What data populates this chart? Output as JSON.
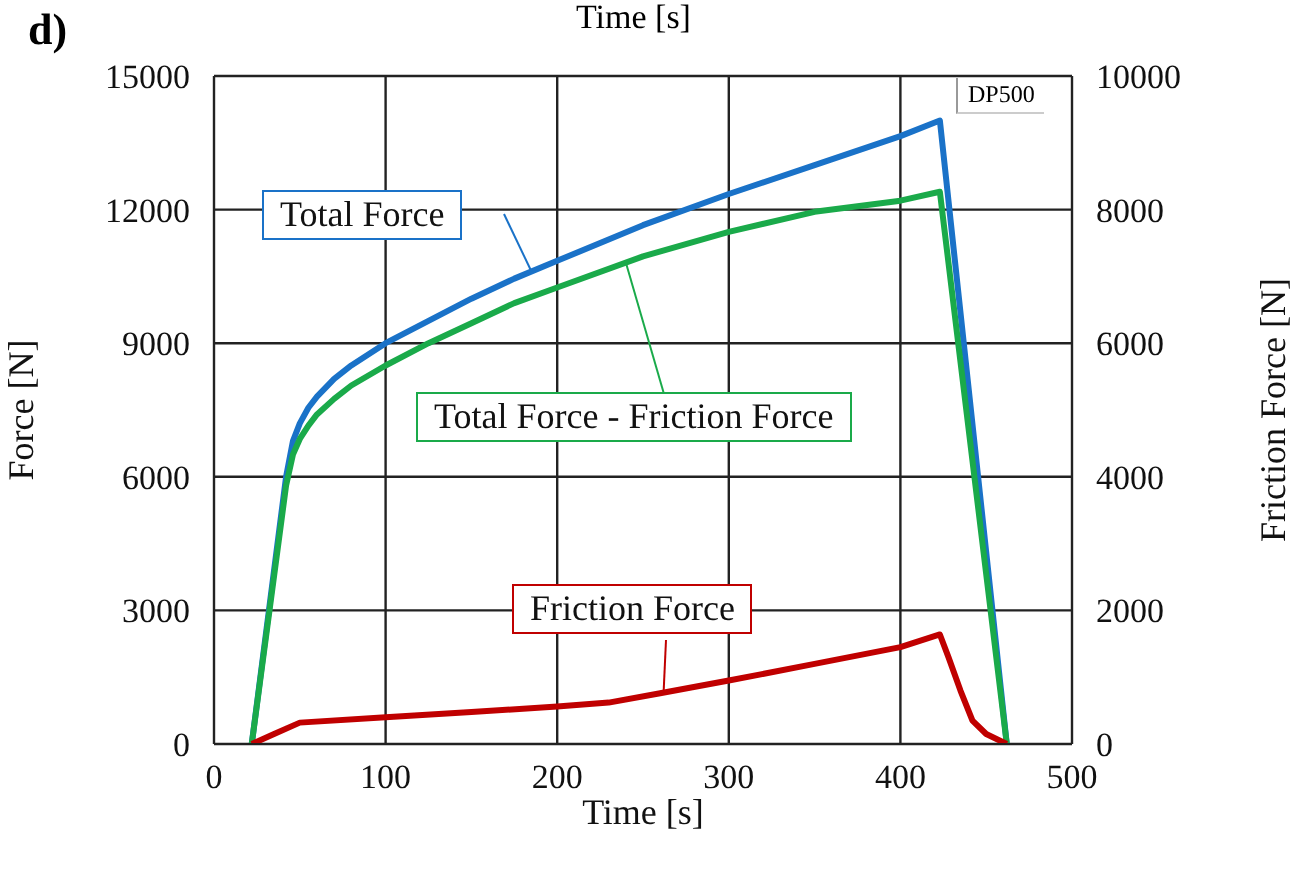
{
  "chart_data": {
    "type": "line",
    "title": "d)",
    "xlabel": "Time [s]",
    "ylabel": "Force [N]",
    "y2label": "Friction Force [N]",
    "annotations": [
      "Time [s]",
      "DP500"
    ],
    "xlim": [
      0,
      500
    ],
    "xticks": [
      0,
      100,
      200,
      300,
      400,
      500
    ],
    "ylim": [
      0,
      15000
    ],
    "yticks": [
      0,
      3000,
      6000,
      9000,
      12000,
      15000
    ],
    "y2lim": [
      0,
      10000
    ],
    "y2ticks": [
      0,
      2000,
      4000,
      6000,
      8000,
      10000
    ],
    "grid": true,
    "legend": false,
    "marker": "none",
    "line_style": "solid",
    "series": [
      {
        "name": "Total Force",
        "color": "#1a72c8",
        "x": [
          22,
          42,
          46,
          50,
          55,
          60,
          70,
          80,
          100,
          125,
          150,
          175,
          200,
          250,
          300,
          350,
          400,
          423,
          462
        ],
        "values": [
          0,
          6000,
          6800,
          7200,
          7550,
          7800,
          8200,
          8500,
          9000,
          9500,
          10000,
          10450,
          10850,
          11650,
          12350,
          13000,
          13650,
          14000,
          0
        ]
      },
      {
        "name": "Total Force - Friction Force",
        "color": "#1aaa4a",
        "x": [
          22,
          42,
          46,
          50,
          55,
          60,
          70,
          80,
          100,
          125,
          150,
          175,
          200,
          250,
          300,
          350,
          400,
          423,
          462
        ],
        "values": [
          0,
          5800,
          6500,
          6850,
          7150,
          7400,
          7750,
          8050,
          8500,
          9000,
          9450,
          9900,
          10250,
          10950,
          11500,
          11950,
          12200,
          12400,
          0
        ]
      },
      {
        "name": "Friction Force",
        "color": "#c00000",
        "axis": "y2",
        "x": [
          22,
          35,
          50,
          100,
          150,
          200,
          230,
          260,
          300,
          350,
          400,
          423,
          428,
          435,
          442,
          450,
          462
        ],
        "values": [
          0,
          150,
          320,
          400,
          480,
          560,
          620,
          760,
          950,
          1200,
          1450,
          1640,
          1300,
          800,
          350,
          150,
          0
        ]
      }
    ]
  }
}
